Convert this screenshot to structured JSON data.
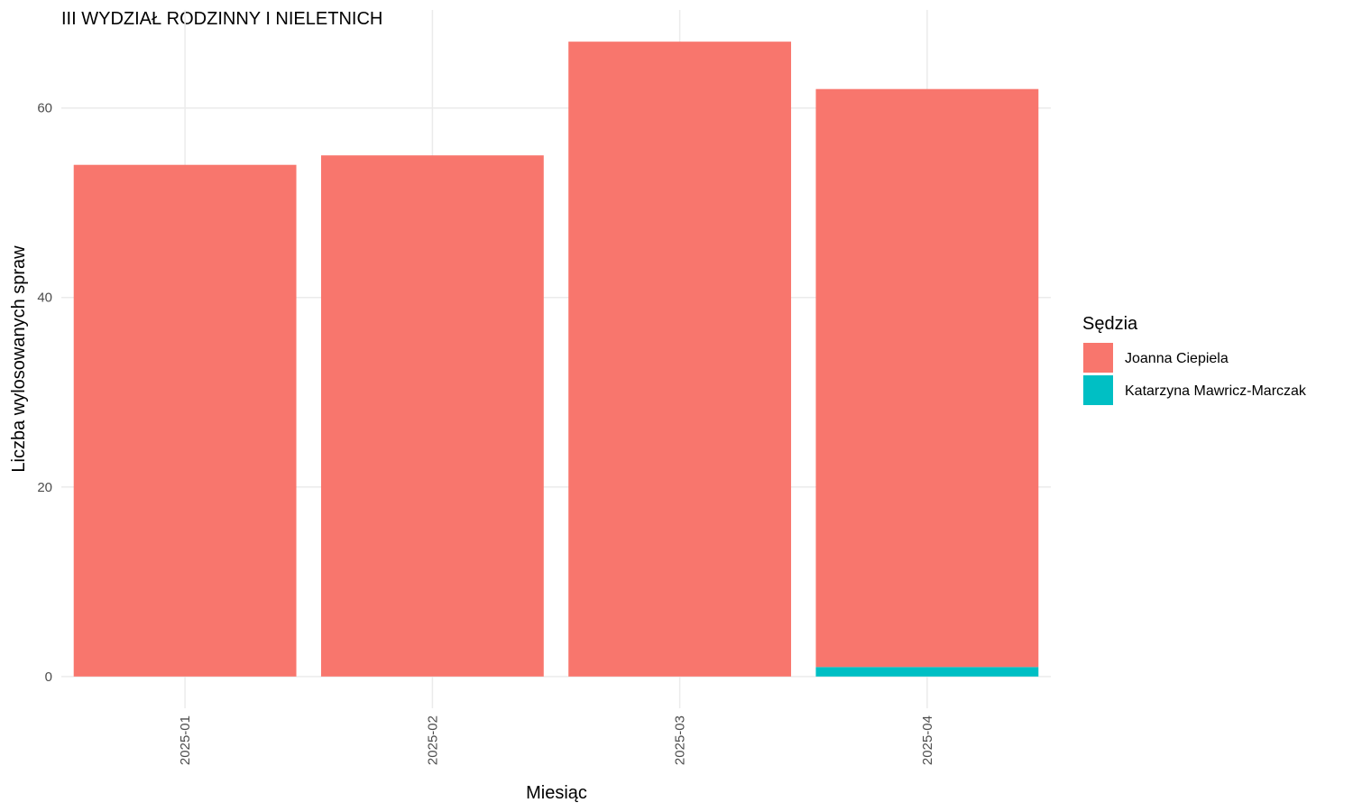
{
  "chart_data": {
    "type": "stacked_bar",
    "title": "III WYDZIAŁ RODZINNY I NIELETNICH",
    "x_label": "Miesiąc",
    "y_label": "Liczba wylosowanych spraw",
    "legend_title": "Sędzia",
    "categories": [
      "2025-01",
      "2025-02",
      "2025-03",
      "2025-04"
    ],
    "series": [
      {
        "name": "Joanna Ciepiela",
        "color": "#f8766d",
        "values": [
          54,
          55,
          67,
          61
        ]
      },
      {
        "name": "Katarzyna Mawricz-Marczak",
        "color": "#00bfc4",
        "values": [
          null,
          null,
          null,
          1
        ]
      }
    ],
    "ylim": [
      -3.35,
      70.35
    ],
    "yticks": [
      0,
      20,
      40,
      60
    ],
    "grid": true,
    "legend": "right"
  }
}
